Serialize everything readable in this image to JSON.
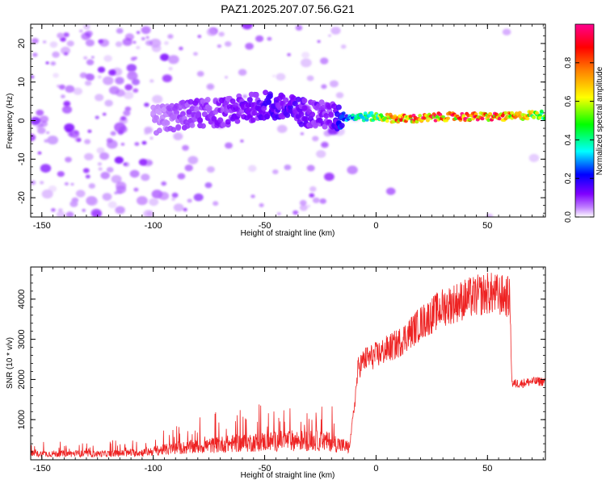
{
  "title": "PAZ1.2025.207.07.56.G21",
  "chart_data": [
    {
      "type": "heatmap",
      "xlabel": "Height of straight line (km)",
      "ylabel": "Frequency (Hz)",
      "xlim": [
        -155,
        76
      ],
      "ylim": [
        -25,
        25
      ],
      "xticks": [
        -150,
        -100,
        -50,
        0,
        50
      ],
      "yticks": [
        -20,
        -10,
        0,
        10,
        20
      ],
      "grid": false,
      "colorbar": {
        "label": "Normalized spectral amplitude",
        "range": [
          0,
          1
        ],
        "ticks": [
          0.0,
          0.2,
          0.4,
          0.6,
          0.8
        ],
        "colormap": [
          "#ffffff",
          "#9000ff",
          "#0000ff",
          "#00ffff",
          "#00ff00",
          "#ffff00",
          "#ff8000",
          "#ff0000",
          "#ff00a0"
        ]
      },
      "ridge": {
        "x": [
          -100,
          -90,
          -80,
          -70,
          -60,
          -50,
          -40,
          -30,
          -20,
          -15,
          -10,
          0,
          10,
          20,
          30,
          40,
          50,
          60,
          70,
          76
        ],
        "frequency": [
          0,
          1,
          2,
          2,
          3,
          4,
          3,
          2,
          1,
          1,
          1,
          1,
          0.5,
          0.5,
          1,
          1,
          1,
          1,
          1.5,
          1.5
        ],
        "amplitude": [
          0.05,
          0.08,
          0.1,
          0.1,
          0.12,
          0.15,
          0.15,
          0.12,
          0.1,
          0.25,
          0.35,
          0.5,
          0.8,
          0.85,
          0.8,
          0.85,
          0.85,
          0.8,
          0.6,
          0.5
        ]
      }
    },
    {
      "type": "line",
      "xlabel": "Height of straight line (km)",
      "ylabel": "SNR (10 * v/v)",
      "xlim": [
        -155,
        76
      ],
      "ylim": [
        0,
        4800
      ],
      "xticks": [
        -150,
        -100,
        -50,
        0,
        50
      ],
      "yticks": [
        1000,
        2000,
        3000,
        4000
      ],
      "grid": false,
      "color": "#ee2222",
      "series": [
        {
          "x": [
            -155,
            -140,
            -120,
            -105,
            -100,
            -90,
            -80,
            -70,
            -60,
            -50,
            -40,
            -30,
            -20,
            -15,
            -12,
            -10,
            -8,
            -5,
            0,
            10,
            20,
            30,
            40,
            50,
            55,
            60,
            61,
            65,
            70,
            76
          ],
          "values": [
            150,
            150,
            150,
            180,
            220,
            280,
            330,
            380,
            420,
            450,
            480,
            480,
            450,
            350,
            300,
            1200,
            2300,
            2500,
            2600,
            2900,
            3400,
            3800,
            4000,
            4150,
            4100,
            4050,
            1900,
            1900,
            1950,
            1950
          ]
        }
      ]
    }
  ]
}
